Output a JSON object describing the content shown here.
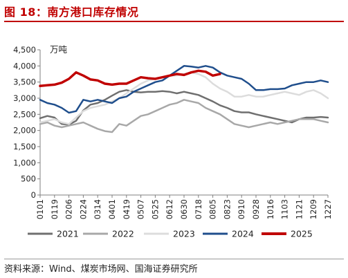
{
  "figure_title": "图 18：南方港口库存情况",
  "source": "资料来源：Wind、煤炭市场网、国海证券研究所",
  "chart_data": {
    "type": "line",
    "unit_label": "万吨",
    "ylim": [
      0,
      4500
    ],
    "yticks": [
      "0",
      "500",
      "1,000",
      "1,500",
      "2,000",
      "2,500",
      "3,000",
      "3,500",
      "4,000",
      "4,500"
    ],
    "ytick_values": [
      0,
      500,
      1000,
      1500,
      2000,
      2500,
      3000,
      3500,
      4000,
      4500
    ],
    "x_ticks": [
      "0101",
      "0119",
      "0206",
      "0224",
      "0314",
      "0401",
      "0419",
      "0507",
      "0525",
      "0612",
      "0630",
      "0718",
      "0805",
      "0823",
      "0910",
      "0928",
      "1016",
      "1103",
      "1121",
      "1209",
      "1227"
    ],
    "grid": false,
    "legend_position": "bottom",
    "series": [
      {
        "name": "2021",
        "color": "#6f6f6f",
        "width": 2.5,
        "points": [
          [
            0,
            2380
          ],
          [
            0.5,
            2450
          ],
          [
            1,
            2400
          ],
          [
            1.5,
            2200
          ],
          [
            2,
            2180
          ],
          [
            2.5,
            2300
          ],
          [
            3,
            2620
          ],
          [
            3.5,
            2800
          ],
          [
            4,
            2850
          ],
          [
            4.5,
            2950
          ],
          [
            5,
            3080
          ],
          [
            5.5,
            3200
          ],
          [
            6,
            3250
          ],
          [
            6.5,
            3200
          ],
          [
            7,
            3180
          ],
          [
            7.5,
            3200
          ],
          [
            8,
            3200
          ],
          [
            8.5,
            3220
          ],
          [
            9,
            3200
          ],
          [
            9.5,
            3150
          ],
          [
            10,
            3200
          ],
          [
            10.5,
            3150
          ],
          [
            11,
            3100
          ],
          [
            11.5,
            3000
          ],
          [
            12,
            2900
          ],
          [
            12.5,
            2780
          ],
          [
            13,
            2700
          ],
          [
            13.5,
            2600
          ],
          [
            14,
            2560
          ],
          [
            14.5,
            2560
          ],
          [
            15,
            2500
          ],
          [
            15.5,
            2450
          ],
          [
            16,
            2400
          ],
          [
            16.5,
            2350
          ],
          [
            17,
            2300
          ],
          [
            17.5,
            2250
          ],
          [
            18,
            2350
          ],
          [
            18.5,
            2400
          ],
          [
            19,
            2400
          ],
          [
            19.5,
            2420
          ],
          [
            20,
            2400
          ]
        ]
      },
      {
        "name": "2022",
        "color": "#a8a8a8",
        "width": 2.5,
        "points": [
          [
            0,
            2200
          ],
          [
            0.5,
            2250
          ],
          [
            1,
            2150
          ],
          [
            1.5,
            2100
          ],
          [
            2,
            2150
          ],
          [
            2.5,
            2200
          ],
          [
            3,
            2250
          ],
          [
            3.5,
            2150
          ],
          [
            4,
            2050
          ],
          [
            4.5,
            1980
          ],
          [
            5,
            1950
          ],
          [
            5.5,
            2200
          ],
          [
            6,
            2150
          ],
          [
            6.5,
            2300
          ],
          [
            7,
            2450
          ],
          [
            7.5,
            2500
          ],
          [
            8,
            2600
          ],
          [
            8.5,
            2700
          ],
          [
            9,
            2800
          ],
          [
            9.5,
            2850
          ],
          [
            10,
            2950
          ],
          [
            10.5,
            2900
          ],
          [
            11,
            2850
          ],
          [
            11.5,
            2700
          ],
          [
            12,
            2600
          ],
          [
            12.5,
            2500
          ],
          [
            13,
            2350
          ],
          [
            13.5,
            2200
          ],
          [
            14,
            2150
          ],
          [
            14.5,
            2100
          ],
          [
            15,
            2150
          ],
          [
            15.5,
            2200
          ],
          [
            16,
            2250
          ],
          [
            16.5,
            2200
          ],
          [
            17,
            2250
          ],
          [
            17.5,
            2300
          ],
          [
            18,
            2350
          ],
          [
            18.5,
            2350
          ],
          [
            19,
            2350
          ],
          [
            19.5,
            2300
          ],
          [
            20,
            2250
          ]
        ]
      },
      {
        "name": "2023",
        "color": "#dcdcdc",
        "width": 2.5,
        "points": [
          [
            0,
            2250
          ],
          [
            0.5,
            2300
          ],
          [
            1,
            2350
          ],
          [
            1.5,
            2250
          ],
          [
            2,
            2200
          ],
          [
            2.5,
            2400
          ],
          [
            3,
            2600
          ],
          [
            3.5,
            2700
          ],
          [
            4,
            2750
          ],
          [
            4.5,
            2800
          ],
          [
            5,
            2900
          ],
          [
            5.5,
            3000
          ],
          [
            6,
            3150
          ],
          [
            6.5,
            3300
          ],
          [
            7,
            3450
          ],
          [
            7.5,
            3550
          ],
          [
            8,
            3600
          ],
          [
            8.5,
            3650
          ],
          [
            9,
            3700
          ],
          [
            9.5,
            3700
          ],
          [
            10,
            3750
          ],
          [
            10.5,
            3800
          ],
          [
            11,
            3750
          ],
          [
            11.5,
            3650
          ],
          [
            12,
            3450
          ],
          [
            12.5,
            3300
          ],
          [
            13,
            3200
          ],
          [
            13.5,
            3050
          ],
          [
            14,
            3050
          ],
          [
            14.5,
            3100
          ],
          [
            15,
            3050
          ],
          [
            15.5,
            3050
          ],
          [
            16,
            3100
          ],
          [
            16.5,
            3150
          ],
          [
            17,
            3200
          ],
          [
            17.5,
            3150
          ],
          [
            18,
            3100
          ],
          [
            18.5,
            3200
          ],
          [
            19,
            3250
          ],
          [
            19.5,
            3150
          ],
          [
            20,
            3000
          ]
        ]
      },
      {
        "name": "2024",
        "color": "#1f4e8c",
        "width": 2.5,
        "points": [
          [
            0,
            2950
          ],
          [
            0.5,
            2850
          ],
          [
            1,
            2800
          ],
          [
            1.5,
            2700
          ],
          [
            2,
            2550
          ],
          [
            2.5,
            2600
          ],
          [
            3,
            2950
          ],
          [
            3.5,
            2900
          ],
          [
            4,
            2950
          ],
          [
            4.5,
            2900
          ],
          [
            5,
            2850
          ],
          [
            5.5,
            3000
          ],
          [
            6,
            3050
          ],
          [
            6.5,
            3200
          ],
          [
            7,
            3300
          ],
          [
            7.5,
            3400
          ],
          [
            8,
            3500
          ],
          [
            8.5,
            3550
          ],
          [
            9,
            3700
          ],
          [
            9.5,
            3850
          ],
          [
            10,
            4000
          ],
          [
            10.5,
            3980
          ],
          [
            11,
            3950
          ],
          [
            11.5,
            4000
          ],
          [
            12,
            3950
          ],
          [
            12.5,
            3800
          ],
          [
            13,
            3700
          ],
          [
            13.5,
            3650
          ],
          [
            14,
            3600
          ],
          [
            14.5,
            3450
          ],
          [
            15,
            3250
          ],
          [
            15.5,
            3250
          ],
          [
            16,
            3280
          ],
          [
            16.5,
            3280
          ],
          [
            17,
            3300
          ],
          [
            17.5,
            3400
          ],
          [
            18,
            3450
          ],
          [
            18.5,
            3500
          ],
          [
            19,
            3500
          ],
          [
            19.5,
            3550
          ],
          [
            20,
            3500
          ]
        ]
      },
      {
        "name": "2025",
        "color": "#c00000",
        "width": 3.5,
        "points": [
          [
            0,
            3380
          ],
          [
            0.5,
            3400
          ],
          [
            1,
            3420
          ],
          [
            1.5,
            3480
          ],
          [
            2,
            3600
          ],
          [
            2.5,
            3800
          ],
          [
            3,
            3700
          ],
          [
            3.5,
            3580
          ],
          [
            4,
            3550
          ],
          [
            4.5,
            3450
          ],
          [
            5,
            3420
          ],
          [
            5.5,
            3450
          ],
          [
            6,
            3450
          ],
          [
            6.5,
            3550
          ],
          [
            7,
            3650
          ],
          [
            7.5,
            3620
          ],
          [
            8,
            3600
          ],
          [
            8.5,
            3650
          ],
          [
            9,
            3700
          ],
          [
            9.5,
            3750
          ],
          [
            10,
            3720
          ],
          [
            10.5,
            3800
          ],
          [
            11,
            3850
          ],
          [
            11.5,
            3820
          ],
          [
            12,
            3700
          ],
          [
            12.5,
            3750
          ]
        ]
      }
    ]
  }
}
